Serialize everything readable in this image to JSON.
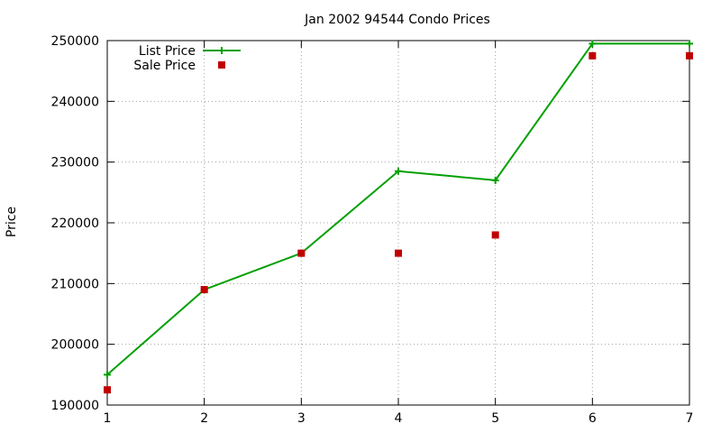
{
  "chart_data": {
    "type": "line",
    "title": "Jan 2002 94544 Condo Prices",
    "xlabel": "",
    "ylabel": "Price",
    "x": [
      1,
      2,
      3,
      4,
      5,
      6,
      7
    ],
    "xlim": [
      1,
      7
    ],
    "ylim": [
      190000,
      250000
    ],
    "xticks": [
      1,
      2,
      3,
      4,
      5,
      6,
      7
    ],
    "yticks": [
      190000,
      200000,
      210000,
      220000,
      230000,
      240000,
      250000
    ],
    "grid": true,
    "legend_position": "top-left",
    "series": [
      {
        "name": "List Price",
        "style": "line+cross",
        "color": "#00a000",
        "values": [
          195000,
          209000,
          215000,
          228500,
          227000,
          249500,
          249500
        ]
      },
      {
        "name": "Sale Price",
        "style": "square-points",
        "color": "#c00000",
        "values": [
          192500,
          209000,
          215000,
          215000,
          218000,
          247500,
          247500
        ]
      }
    ]
  }
}
